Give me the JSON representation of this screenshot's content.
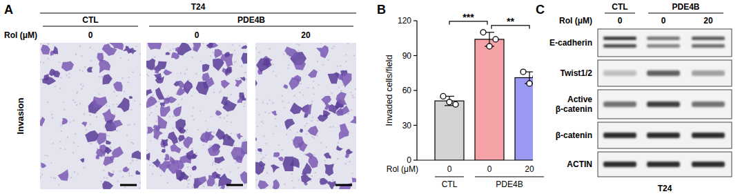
{
  "panel_labels": [
    "A",
    "B",
    "C"
  ],
  "panel_a": {
    "cell_line": "T24",
    "row_label": "Invasion",
    "treatment_label": "Rol (μM)",
    "groups": [
      "CTL",
      "PDE4B",
      "PDE4B"
    ],
    "doses": [
      "0",
      "0",
      "20"
    ]
  },
  "chart_data": {
    "type": "bar",
    "y_label": "Invaded cells/field",
    "x_label": "Rol (μM)",
    "categories": [
      "0",
      "0",
      "20"
    ],
    "groups": [
      "CTL",
      "PDE4B",
      "PDE4B"
    ],
    "values": [
      51,
      104,
      71
    ],
    "errors": [
      4,
      6,
      5
    ],
    "points": [
      [
        55,
        50,
        48
      ],
      [
        110,
        98,
        104
      ],
      [
        76,
        66,
        72
      ]
    ],
    "colors": [
      "#d3d3d3",
      "#f5a3a6",
      "#9a9af2"
    ],
    "ylim": [
      0,
      120
    ],
    "yticks": [
      0,
      30,
      60,
      90,
      120
    ],
    "grid": false,
    "significance": [
      {
        "from": 0,
        "to": 1,
        "label": "***"
      },
      {
        "from": 1,
        "to": 2,
        "label": "**"
      }
    ]
  },
  "panel_c": {
    "cell_line": "T24",
    "treatment_label": "Rol (μM)",
    "groups": [
      "CTL",
      "PDE4B",
      "PDE4B"
    ],
    "doses": [
      "0",
      "0",
      "20"
    ],
    "rows": [
      {
        "label": "E-cadherin",
        "intensities": [
          0.9,
          0.6,
          0.75
        ]
      },
      {
        "label": "Twist1/2",
        "intensities": [
          0.25,
          0.7,
          0.4
        ]
      },
      {
        "label": "Active β-catenin",
        "intensities": [
          0.6,
          0.85,
          0.6
        ]
      },
      {
        "label": "β-catenin",
        "intensities": [
          0.95,
          0.95,
          0.95
        ]
      },
      {
        "label": "ACTIN",
        "intensities": [
          0.95,
          0.95,
          0.95
        ]
      }
    ]
  }
}
